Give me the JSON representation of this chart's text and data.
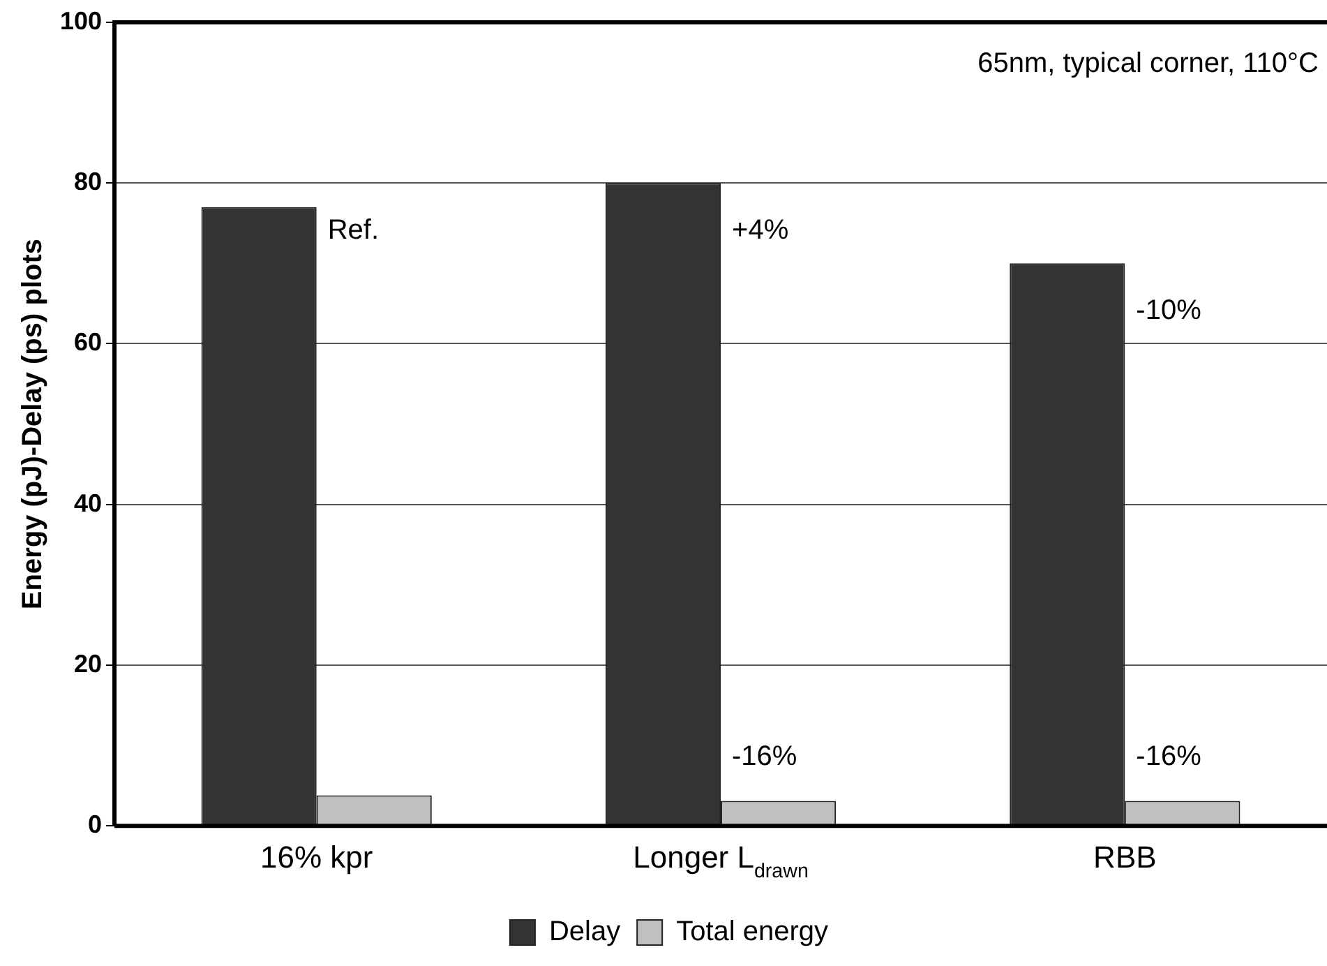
{
  "chart_data": {
    "type": "bar",
    "ylabel": "Energy (pJ)-Delay (ps) plots",
    "categories": [
      "16% kpr",
      "Longer L$_{drawn}$",
      "RBB"
    ],
    "series": [
      {
        "name": "Delay",
        "color": "#333333",
        "values": [
          77,
          80,
          70
        ]
      },
      {
        "name": "Total energy",
        "color": "#c0c0c0",
        "values": [
          3.8,
          3.1,
          3.1
        ]
      }
    ],
    "ylim": [
      0,
      100
    ],
    "yticks": [
      0,
      20,
      40,
      60,
      80,
      100
    ],
    "grid": "y",
    "legend": "bottom",
    "annotations": [
      "65nm, typical corner, 110°C",
      {
        "text": "Ref.",
        "x": "16% kpr",
        "y": 74
      },
      {
        "text": "+4%",
        "x": "Longer L$_{drawn}$",
        "y": 74
      },
      {
        "text": "-10%",
        "x": "RBB",
        "y": 64
      },
      {
        "text": "-16%",
        "x": "Longer L$_{drawn}$",
        "y": 8.5
      },
      {
        "text": "-16%",
        "x": "RBB",
        "y": 8.5
      }
    ]
  }
}
